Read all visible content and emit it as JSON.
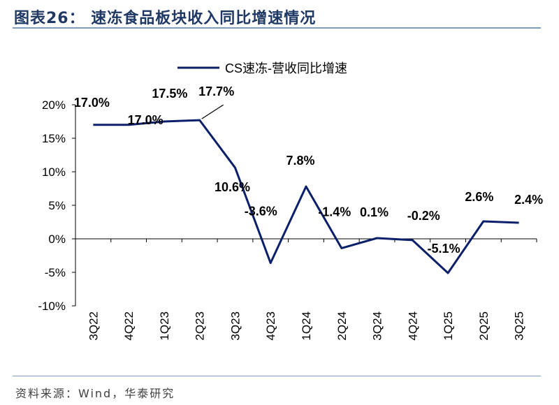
{
  "header": {
    "title": "图表26：  速冻食品板块收入同比增速情况"
  },
  "footer": {
    "source": "资料来源：Wind，华泰研究"
  },
  "colors": {
    "series": "#0b1f6b",
    "title": "#1f3864",
    "rule": "#7f9ec6"
  },
  "chart_data": {
    "type": "line",
    "categories": [
      "3Q22",
      "4Q22",
      "1Q23",
      "2Q23",
      "3Q23",
      "4Q23",
      "1Q24",
      "2Q24",
      "3Q24",
      "4Q24",
      "1Q25",
      "2Q25",
      "3Q25"
    ],
    "series": [
      {
        "name": "CS速冻-营收同比增速",
        "values": [
          17.0,
          17.0,
          17.5,
          17.7,
          10.6,
          -3.6,
          7.8,
          -1.4,
          0.1,
          -0.2,
          -5.1,
          2.6,
          2.4
        ]
      }
    ],
    "data_labels": [
      "17.0%",
      "17.0%",
      "17.5%",
      "17.7%",
      "10.6%",
      "-3.6%",
      "7.8%",
      "-1.4%",
      "0.1%",
      "-0.2%",
      "-5.1%",
      "2.6%",
      "2.4%"
    ],
    "yticks": [
      "20%",
      "15%",
      "10%",
      "5%",
      "0%",
      "-5%",
      "-10%"
    ],
    "ylim": [
      -10,
      20
    ],
    "legend": "top-center",
    "grid": false
  }
}
